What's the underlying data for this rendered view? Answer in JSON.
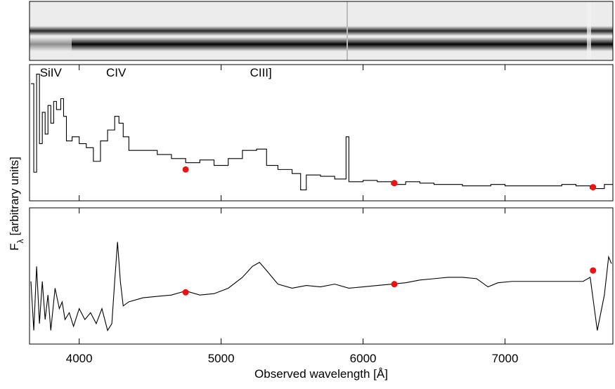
{
  "chart_data": [
    {
      "type": "line",
      "step": true,
      "color": "#000000",
      "xlim": [
        3650,
        7760
      ],
      "ylim": [
        0,
        100
      ],
      "ylabel": {
        "main": "F",
        "sub": "λ",
        "rest": "[arbitrary units]"
      },
      "annotations": [
        {
          "text": "SiIV",
          "x": 3800
        },
        {
          "text": "CIV",
          "x": 4260
        },
        {
          "text": "CIII]",
          "x": 5280
        }
      ],
      "x": [
        3660,
        3680,
        3700,
        3720,
        3740,
        3760,
        3780,
        3800,
        3820,
        3840,
        3870,
        3890,
        3910,
        3950,
        4000,
        4050,
        4100,
        4150,
        4200,
        4250,
        4280,
        4310,
        4350,
        4450,
        4550,
        4650,
        4750,
        4850,
        4950,
        5050,
        5150,
        5250,
        5320,
        5400,
        5500,
        5560,
        5600,
        5700,
        5800,
        5880,
        5900,
        6000,
        6100,
        6200,
        6300,
        6400,
        6500,
        6600,
        6700,
        6800,
        6900,
        7000,
        7100,
        7200,
        7300,
        7400,
        7500,
        7600,
        7700,
        7750
      ],
      "values": [
        86,
        21,
        93,
        42,
        65,
        49,
        70,
        57,
        73,
        67,
        75,
        62,
        44,
        47,
        42,
        39,
        29,
        44,
        52,
        62,
        57,
        47,
        37,
        37,
        34,
        31,
        28,
        30,
        26,
        31,
        37,
        38,
        26,
        23,
        20,
        8,
        19,
        18,
        16,
        47,
        14,
        15,
        14,
        12,
        14,
        13,
        12,
        12,
        11,
        11,
        12,
        11,
        11,
        11,
        11,
        12,
        11,
        9,
        12,
        12
      ],
      "points": {
        "color": "#ee1111",
        "x": [
          4750,
          6220,
          7620
        ],
        "values": [
          23,
          13,
          10
        ]
      }
    },
    {
      "type": "line",
      "color": "#000000",
      "xlim": [
        3650,
        7760
      ],
      "ylim": [
        0,
        100
      ],
      "xticks": [
        4000,
        5000,
        6000,
        7000
      ],
      "xlabel": "Observed wavelength [Å]",
      "x": [
        3660,
        3680,
        3700,
        3720,
        3740,
        3760,
        3780,
        3800,
        3830,
        3860,
        3880,
        3900,
        3930,
        3960,
        4000,
        4040,
        4080,
        4120,
        4160,
        4200,
        4230,
        4250,
        4270,
        4290,
        4310,
        4350,
        4450,
        4550,
        4650,
        4750,
        4850,
        4950,
        5050,
        5150,
        5220,
        5270,
        5320,
        5400,
        5500,
        5600,
        5700,
        5800,
        5900,
        6000,
        6100,
        6200,
        6300,
        6400,
        6500,
        6600,
        6700,
        6800,
        6880,
        6950,
        7050,
        7150,
        7250,
        7350,
        7450,
        7550,
        7600,
        7650,
        7700,
        7730,
        7750
      ],
      "values": [
        46,
        10,
        57,
        15,
        46,
        18,
        36,
        10,
        41,
        26,
        31,
        18,
        23,
        13,
        26,
        18,
        23,
        15,
        26,
        10,
        15,
        46,
        75,
        46,
        28,
        31,
        34,
        35,
        36,
        39,
        36,
        37,
        41,
        49,
        57,
        60,
        54,
        44,
        41,
        43,
        42,
        44,
        41,
        42,
        43,
        44,
        45,
        47,
        48,
        49,
        49,
        48,
        42,
        45,
        46,
        46,
        46,
        46,
        46,
        46,
        49,
        10,
        36,
        64,
        59
      ],
      "points": {
        "color": "#ee1111",
        "x": [
          4750,
          6220,
          7620
        ],
        "values": [
          38,
          44,
          54
        ]
      }
    }
  ]
}
